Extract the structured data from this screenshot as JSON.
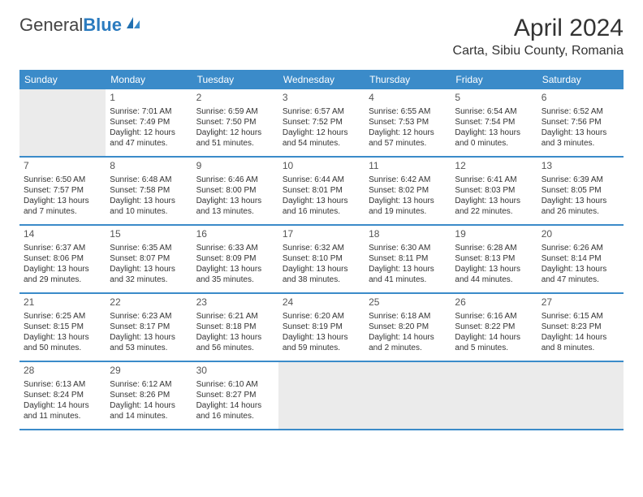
{
  "logo": {
    "text_general": "General",
    "text_blue": "Blue"
  },
  "title": "April 2024",
  "location": "Carta, Sibiu County, Romania",
  "colors": {
    "header_bg": "#3b8bc9",
    "header_text": "#ffffff",
    "border": "#3b8bc9",
    "shaded_bg": "#ebebeb",
    "text": "#333333",
    "logo_gray": "#444444",
    "logo_blue": "#2b7bbf"
  },
  "day_names": [
    "Sunday",
    "Monday",
    "Tuesday",
    "Wednesday",
    "Thursday",
    "Friday",
    "Saturday"
  ],
  "weeks": [
    [
      {
        "day": "",
        "sunrise": "",
        "sunset": "",
        "daylight1": "",
        "daylight2": "",
        "shaded": true
      },
      {
        "day": "1",
        "sunrise": "Sunrise: 7:01 AM",
        "sunset": "Sunset: 7:49 PM",
        "daylight1": "Daylight: 12 hours",
        "daylight2": "and 47 minutes."
      },
      {
        "day": "2",
        "sunrise": "Sunrise: 6:59 AM",
        "sunset": "Sunset: 7:50 PM",
        "daylight1": "Daylight: 12 hours",
        "daylight2": "and 51 minutes."
      },
      {
        "day": "3",
        "sunrise": "Sunrise: 6:57 AM",
        "sunset": "Sunset: 7:52 PM",
        "daylight1": "Daylight: 12 hours",
        "daylight2": "and 54 minutes."
      },
      {
        "day": "4",
        "sunrise": "Sunrise: 6:55 AM",
        "sunset": "Sunset: 7:53 PM",
        "daylight1": "Daylight: 12 hours",
        "daylight2": "and 57 minutes."
      },
      {
        "day": "5",
        "sunrise": "Sunrise: 6:54 AM",
        "sunset": "Sunset: 7:54 PM",
        "daylight1": "Daylight: 13 hours",
        "daylight2": "and 0 minutes."
      },
      {
        "day": "6",
        "sunrise": "Sunrise: 6:52 AM",
        "sunset": "Sunset: 7:56 PM",
        "daylight1": "Daylight: 13 hours",
        "daylight2": "and 3 minutes."
      }
    ],
    [
      {
        "day": "7",
        "sunrise": "Sunrise: 6:50 AM",
        "sunset": "Sunset: 7:57 PM",
        "daylight1": "Daylight: 13 hours",
        "daylight2": "and 7 minutes."
      },
      {
        "day": "8",
        "sunrise": "Sunrise: 6:48 AM",
        "sunset": "Sunset: 7:58 PM",
        "daylight1": "Daylight: 13 hours",
        "daylight2": "and 10 minutes."
      },
      {
        "day": "9",
        "sunrise": "Sunrise: 6:46 AM",
        "sunset": "Sunset: 8:00 PM",
        "daylight1": "Daylight: 13 hours",
        "daylight2": "and 13 minutes."
      },
      {
        "day": "10",
        "sunrise": "Sunrise: 6:44 AM",
        "sunset": "Sunset: 8:01 PM",
        "daylight1": "Daylight: 13 hours",
        "daylight2": "and 16 minutes."
      },
      {
        "day": "11",
        "sunrise": "Sunrise: 6:42 AM",
        "sunset": "Sunset: 8:02 PM",
        "daylight1": "Daylight: 13 hours",
        "daylight2": "and 19 minutes."
      },
      {
        "day": "12",
        "sunrise": "Sunrise: 6:41 AM",
        "sunset": "Sunset: 8:03 PM",
        "daylight1": "Daylight: 13 hours",
        "daylight2": "and 22 minutes."
      },
      {
        "day": "13",
        "sunrise": "Sunrise: 6:39 AM",
        "sunset": "Sunset: 8:05 PM",
        "daylight1": "Daylight: 13 hours",
        "daylight2": "and 26 minutes."
      }
    ],
    [
      {
        "day": "14",
        "sunrise": "Sunrise: 6:37 AM",
        "sunset": "Sunset: 8:06 PM",
        "daylight1": "Daylight: 13 hours",
        "daylight2": "and 29 minutes."
      },
      {
        "day": "15",
        "sunrise": "Sunrise: 6:35 AM",
        "sunset": "Sunset: 8:07 PM",
        "daylight1": "Daylight: 13 hours",
        "daylight2": "and 32 minutes."
      },
      {
        "day": "16",
        "sunrise": "Sunrise: 6:33 AM",
        "sunset": "Sunset: 8:09 PM",
        "daylight1": "Daylight: 13 hours",
        "daylight2": "and 35 minutes."
      },
      {
        "day": "17",
        "sunrise": "Sunrise: 6:32 AM",
        "sunset": "Sunset: 8:10 PM",
        "daylight1": "Daylight: 13 hours",
        "daylight2": "and 38 minutes."
      },
      {
        "day": "18",
        "sunrise": "Sunrise: 6:30 AM",
        "sunset": "Sunset: 8:11 PM",
        "daylight1": "Daylight: 13 hours",
        "daylight2": "and 41 minutes."
      },
      {
        "day": "19",
        "sunrise": "Sunrise: 6:28 AM",
        "sunset": "Sunset: 8:13 PM",
        "daylight1": "Daylight: 13 hours",
        "daylight2": "and 44 minutes."
      },
      {
        "day": "20",
        "sunrise": "Sunrise: 6:26 AM",
        "sunset": "Sunset: 8:14 PM",
        "daylight1": "Daylight: 13 hours",
        "daylight2": "and 47 minutes."
      }
    ],
    [
      {
        "day": "21",
        "sunrise": "Sunrise: 6:25 AM",
        "sunset": "Sunset: 8:15 PM",
        "daylight1": "Daylight: 13 hours",
        "daylight2": "and 50 minutes."
      },
      {
        "day": "22",
        "sunrise": "Sunrise: 6:23 AM",
        "sunset": "Sunset: 8:17 PM",
        "daylight1": "Daylight: 13 hours",
        "daylight2": "and 53 minutes."
      },
      {
        "day": "23",
        "sunrise": "Sunrise: 6:21 AM",
        "sunset": "Sunset: 8:18 PM",
        "daylight1": "Daylight: 13 hours",
        "daylight2": "and 56 minutes."
      },
      {
        "day": "24",
        "sunrise": "Sunrise: 6:20 AM",
        "sunset": "Sunset: 8:19 PM",
        "daylight1": "Daylight: 13 hours",
        "daylight2": "and 59 minutes."
      },
      {
        "day": "25",
        "sunrise": "Sunrise: 6:18 AM",
        "sunset": "Sunset: 8:20 PM",
        "daylight1": "Daylight: 14 hours",
        "daylight2": "and 2 minutes."
      },
      {
        "day": "26",
        "sunrise": "Sunrise: 6:16 AM",
        "sunset": "Sunset: 8:22 PM",
        "daylight1": "Daylight: 14 hours",
        "daylight2": "and 5 minutes."
      },
      {
        "day": "27",
        "sunrise": "Sunrise: 6:15 AM",
        "sunset": "Sunset: 8:23 PM",
        "daylight1": "Daylight: 14 hours",
        "daylight2": "and 8 minutes."
      }
    ],
    [
      {
        "day": "28",
        "sunrise": "Sunrise: 6:13 AM",
        "sunset": "Sunset: 8:24 PM",
        "daylight1": "Daylight: 14 hours",
        "daylight2": "and 11 minutes."
      },
      {
        "day": "29",
        "sunrise": "Sunrise: 6:12 AM",
        "sunset": "Sunset: 8:26 PM",
        "daylight1": "Daylight: 14 hours",
        "daylight2": "and 14 minutes."
      },
      {
        "day": "30",
        "sunrise": "Sunrise: 6:10 AM",
        "sunset": "Sunset: 8:27 PM",
        "daylight1": "Daylight: 14 hours",
        "daylight2": "and 16 minutes."
      },
      {
        "day": "",
        "sunrise": "",
        "sunset": "",
        "daylight1": "",
        "daylight2": "",
        "shaded": true
      },
      {
        "day": "",
        "sunrise": "",
        "sunset": "",
        "daylight1": "",
        "daylight2": "",
        "shaded": true
      },
      {
        "day": "",
        "sunrise": "",
        "sunset": "",
        "daylight1": "",
        "daylight2": "",
        "shaded": true
      },
      {
        "day": "",
        "sunrise": "",
        "sunset": "",
        "daylight1": "",
        "daylight2": "",
        "shaded": true
      }
    ]
  ]
}
